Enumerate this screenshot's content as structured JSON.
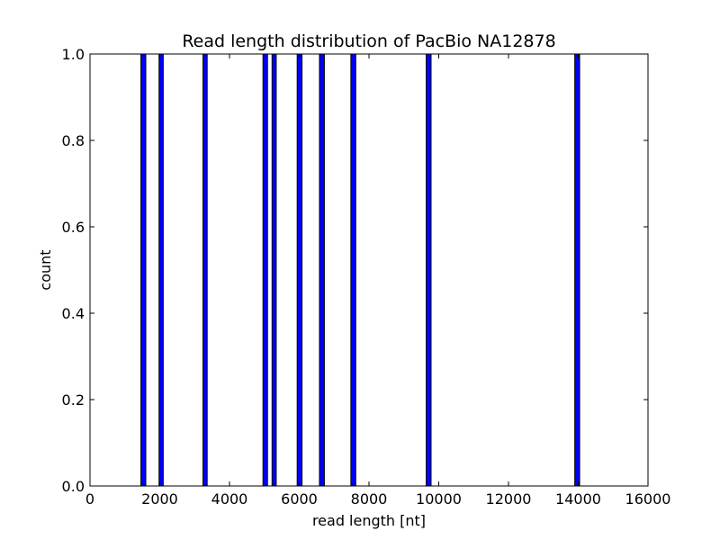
{
  "chart_data": {
    "type": "bar",
    "title": "Read length distribution of PacBio NA12878",
    "xlabel": "read length [nt]",
    "ylabel": "count",
    "xlim": [
      0,
      16000
    ],
    "ylim": [
      0.0,
      1.0
    ],
    "xticks": [
      "0",
      "2000",
      "4000",
      "6000",
      "8000",
      "10000",
      "12000",
      "14000",
      "16000"
    ],
    "yticks": [
      "0.0",
      "0.2",
      "0.4",
      "0.6",
      "0.8",
      "1.0"
    ],
    "grid": false,
    "legend": "none",
    "bar_color": "#0000ff",
    "bars": [
      {
        "x_start": 1460,
        "x_end": 1600,
        "value": 1
      },
      {
        "x_start": 1980,
        "x_end": 2100,
        "value": 1
      },
      {
        "x_start": 3240,
        "x_end": 3360,
        "value": 1
      },
      {
        "x_start": 4960,
        "x_end": 5090,
        "value": 1
      },
      {
        "x_start": 5220,
        "x_end": 5340,
        "value": 1
      },
      {
        "x_start": 5940,
        "x_end": 6080,
        "value": 1
      },
      {
        "x_start": 6580,
        "x_end": 6720,
        "value": 1
      },
      {
        "x_start": 7480,
        "x_end": 7620,
        "value": 1
      },
      {
        "x_start": 9640,
        "x_end": 9780,
        "value": 1
      },
      {
        "x_start": 13900,
        "x_end": 14040,
        "value": 1
      }
    ]
  }
}
